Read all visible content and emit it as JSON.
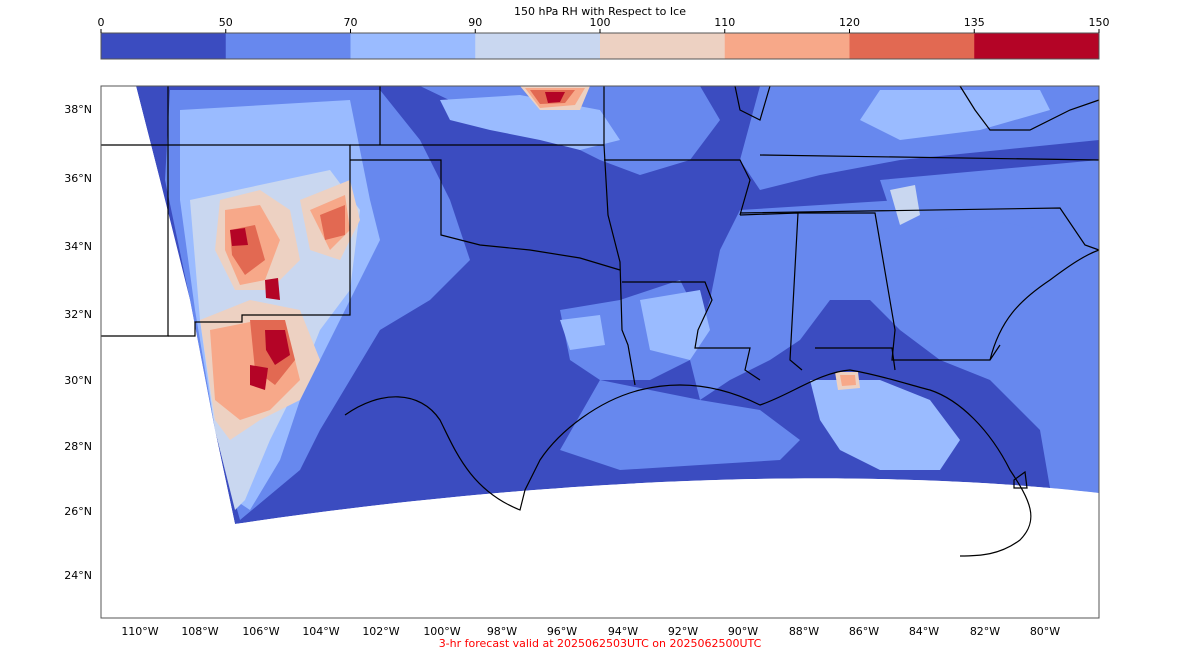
{
  "colorbar": {
    "title": "150 hPa RH with Respect to Ice",
    "ticks": [
      "0",
      "50",
      "70",
      "90",
      "100",
      "110",
      "120",
      "135",
      "150"
    ],
    "colors": [
      "#3b4cc0",
      "#6788ee",
      "#9abbff",
      "#c9d7f0",
      "#edd1c2",
      "#f7a889",
      "#e26952",
      "#b40426"
    ]
  },
  "map": {
    "lat_labels": [
      "38°N",
      "36°N",
      "34°N",
      "32°N",
      "30°N",
      "28°N",
      "26°N",
      "24°N"
    ],
    "lon_labels": [
      "110°W",
      "108°W",
      "106°W",
      "104°W",
      "102°W",
      "100°W",
      "98°W",
      "96°W",
      "94°W",
      "92°W",
      "90°W",
      "88°W",
      "86°W",
      "84°W",
      "82°W",
      "80°W"
    ],
    "background_color": "#3b4cc0"
  },
  "footer": {
    "valid_text": "3-hr forecast valid at 2025062503UTC on 2025062500UTC",
    "text_color": "#ff0000"
  }
}
